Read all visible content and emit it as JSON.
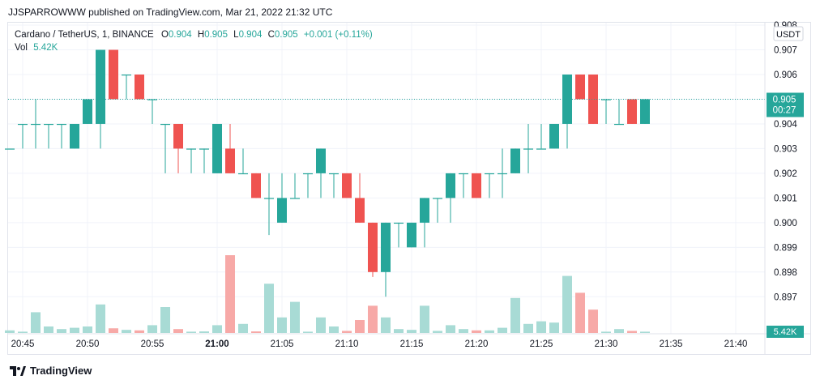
{
  "header": {
    "published": "JJSPARROWWW published on TradingView.com, Mar 21, 2022 21:32 UTC"
  },
  "legend": {
    "symbol": "Cardano / TetherUS, 1, BINANCE",
    "o_label": "O",
    "o": "0.904",
    "h_label": "H",
    "h": "0.905",
    "l_label": "L",
    "l": "0.904",
    "c_label": "C",
    "c": "0.905",
    "change": "+0.001 (+0.11%)",
    "vol_label": "Vol",
    "vol": "5.42K"
  },
  "scale": {
    "currency": "USDT",
    "last_price": "0.905",
    "countdown": "00:27",
    "vol_badge": "5.42K"
  },
  "colors": {
    "up": "#26a69a",
    "down": "#ef5350",
    "up_vol": "#a8dbd5",
    "down_vol": "#f7a9a7"
  },
  "footer": {
    "brand": "TradingView"
  },
  "chart_data": {
    "type": "candlestick",
    "interval": "1 minute",
    "ylim": [
      0.8955,
      0.9081
    ],
    "y_ticks": [
      "0.897",
      "0.898",
      "0.899",
      "0.900",
      "0.901",
      "0.902",
      "0.903",
      "0.904",
      "0.905",
      "0.906",
      "0.907",
      "0.908"
    ],
    "x_ticks": [
      "20:45",
      "20:50",
      "20:55",
      "21:00",
      "21:05",
      "21:10",
      "21:15",
      "21:20",
      "21:25",
      "21:30",
      "21:35",
      "21:40"
    ],
    "candles": [
      {
        "t": "20:44",
        "o": 0.903,
        "h": 0.903,
        "l": 0.903,
        "c": 0.903,
        "v": 0.1
      },
      {
        "t": "20:45",
        "o": 0.904,
        "h": 0.904,
        "l": 0.903,
        "c": 0.904,
        "v": 0.05
      },
      {
        "t": "20:46",
        "o": 0.904,
        "h": 0.905,
        "l": 0.903,
        "c": 0.904,
        "v": 0.8
      },
      {
        "t": "20:47",
        "o": 0.904,
        "h": 0.904,
        "l": 0.903,
        "c": 0.904,
        "v": 0.25
      },
      {
        "t": "20:48",
        "o": 0.904,
        "h": 0.904,
        "l": 0.903,
        "c": 0.904,
        "v": 0.15
      },
      {
        "t": "20:49",
        "o": 0.903,
        "h": 0.904,
        "l": 0.903,
        "c": 0.904,
        "v": 0.2
      },
      {
        "t": "20:50",
        "o": 0.904,
        "h": 0.905,
        "l": 0.904,
        "c": 0.905,
        "v": 0.25
      },
      {
        "t": "20:51",
        "o": 0.904,
        "h": 0.907,
        "l": 0.903,
        "c": 0.907,
        "v": 1.1
      },
      {
        "t": "20:52",
        "o": 0.907,
        "h": 0.907,
        "l": 0.905,
        "c": 0.905,
        "v": 0.18
      },
      {
        "t": "20:53",
        "o": 0.906,
        "h": 0.906,
        "l": 0.905,
        "c": 0.906,
        "v": 0.12
      },
      {
        "t": "20:54",
        "o": 0.906,
        "h": 0.906,
        "l": 0.905,
        "c": 0.905,
        "v": 0.1
      },
      {
        "t": "20:55",
        "o": 0.905,
        "h": 0.905,
        "l": 0.904,
        "c": 0.905,
        "v": 0.3
      },
      {
        "t": "20:56",
        "o": 0.904,
        "h": 0.904,
        "l": 0.902,
        "c": 0.904,
        "v": 1.0
      },
      {
        "t": "20:57",
        "o": 0.904,
        "h": 0.904,
        "l": 0.902,
        "c": 0.903,
        "v": 0.15
      },
      {
        "t": "20:58",
        "o": 0.903,
        "h": 0.903,
        "l": 0.902,
        "c": 0.903,
        "v": 0.05
      },
      {
        "t": "20:59",
        "o": 0.903,
        "h": 0.903,
        "l": 0.902,
        "c": 0.903,
        "v": 0.06
      },
      {
        "t": "21:00",
        "o": 0.902,
        "h": 0.904,
        "l": 0.902,
        "c": 0.904,
        "v": 0.3
      },
      {
        "t": "21:01",
        "o": 0.903,
        "h": 0.904,
        "l": 0.902,
        "c": 0.902,
        "v": 3.0
      },
      {
        "t": "21:02",
        "o": 0.902,
        "h": 0.903,
        "l": 0.902,
        "c": 0.902,
        "v": 0.35
      },
      {
        "t": "21:03",
        "o": 0.902,
        "h": 0.902,
        "l": 0.901,
        "c": 0.901,
        "v": 0.06
      },
      {
        "t": "21:04",
        "o": 0.901,
        "h": 0.902,
        "l": 0.8995,
        "c": 0.901,
        "v": 1.9
      },
      {
        "t": "21:05",
        "o": 0.9,
        "h": 0.902,
        "l": 0.9,
        "c": 0.901,
        "v": 0.6
      },
      {
        "t": "21:06",
        "o": 0.901,
        "h": 0.902,
        "l": 0.901,
        "c": 0.901,
        "v": 1.2
      },
      {
        "t": "21:07",
        "o": 0.902,
        "h": 0.902,
        "l": 0.901,
        "c": 0.902,
        "v": 0.05
      },
      {
        "t": "21:08",
        "o": 0.902,
        "h": 0.903,
        "l": 0.901,
        "c": 0.903,
        "v": 0.6
      },
      {
        "t": "21:09",
        "o": 0.902,
        "h": 0.902,
        "l": 0.901,
        "c": 0.902,
        "v": 0.25
      },
      {
        "t": "21:10",
        "o": 0.902,
        "h": 0.902,
        "l": 0.901,
        "c": 0.901,
        "v": 0.08
      },
      {
        "t": "21:11",
        "o": 0.901,
        "h": 0.902,
        "l": 0.9,
        "c": 0.9,
        "v": 0.5
      },
      {
        "t": "21:12",
        "o": 0.9,
        "h": 0.9,
        "l": 0.8978,
        "c": 0.898,
        "v": 1.05
      },
      {
        "t": "21:13",
        "o": 0.898,
        "h": 0.9,
        "l": 0.897,
        "c": 0.9,
        "v": 0.6
      },
      {
        "t": "21:14",
        "o": 0.9,
        "h": 0.9,
        "l": 0.899,
        "c": 0.9,
        "v": 0.15
      },
      {
        "t": "21:15",
        "o": 0.899,
        "h": 0.9,
        "l": 0.899,
        "c": 0.9,
        "v": 0.12
      },
      {
        "t": "21:16",
        "o": 0.9,
        "h": 0.901,
        "l": 0.899,
        "c": 0.901,
        "v": 1.05
      },
      {
        "t": "21:17",
        "o": 0.901,
        "h": 0.901,
        "l": 0.9,
        "c": 0.901,
        "v": 0.08
      },
      {
        "t": "21:18",
        "o": 0.901,
        "h": 0.902,
        "l": 0.9,
        "c": 0.902,
        "v": 0.3
      },
      {
        "t": "21:19",
        "o": 0.902,
        "h": 0.902,
        "l": 0.901,
        "c": 0.902,
        "v": 0.15
      },
      {
        "t": "21:20",
        "o": 0.902,
        "h": 0.902,
        "l": 0.901,
        "c": 0.901,
        "v": 0.1
      },
      {
        "t": "21:21",
        "o": 0.902,
        "h": 0.902,
        "l": 0.901,
        "c": 0.902,
        "v": 0.1
      },
      {
        "t": "21:22",
        "o": 0.902,
        "h": 0.903,
        "l": 0.901,
        "c": 0.902,
        "v": 0.2
      },
      {
        "t": "21:23",
        "o": 0.902,
        "h": 0.903,
        "l": 0.902,
        "c": 0.903,
        "v": 1.35
      },
      {
        "t": "21:24",
        "o": 0.903,
        "h": 0.904,
        "l": 0.902,
        "c": 0.903,
        "v": 0.35
      },
      {
        "t": "21:25",
        "o": 0.903,
        "h": 0.904,
        "l": 0.903,
        "c": 0.903,
        "v": 0.45
      },
      {
        "t": "21:26",
        "o": 0.903,
        "h": 0.904,
        "l": 0.903,
        "c": 0.904,
        "v": 0.4
      },
      {
        "t": "21:27",
        "o": 0.904,
        "h": 0.906,
        "l": 0.903,
        "c": 0.906,
        "v": 2.2
      },
      {
        "t": "21:28",
        "o": 0.906,
        "h": 0.906,
        "l": 0.905,
        "c": 0.905,
        "v": 1.55
      },
      {
        "t": "21:29",
        "o": 0.906,
        "h": 0.906,
        "l": 0.904,
        "c": 0.904,
        "v": 0.9
      },
      {
        "t": "21:30",
        "o": 0.905,
        "h": 0.905,
        "l": 0.904,
        "c": 0.905,
        "v": 0.05
      },
      {
        "t": "21:31",
        "o": 0.904,
        "h": 0.905,
        "l": 0.904,
        "c": 0.904,
        "v": 0.15
      },
      {
        "t": "21:32",
        "o": 0.905,
        "h": 0.905,
        "l": 0.904,
        "c": 0.904,
        "v": 0.08
      },
      {
        "t": "21:33",
        "o": 0.904,
        "h": 0.905,
        "l": 0.904,
        "c": 0.905,
        "v": 0.05
      }
    ]
  }
}
